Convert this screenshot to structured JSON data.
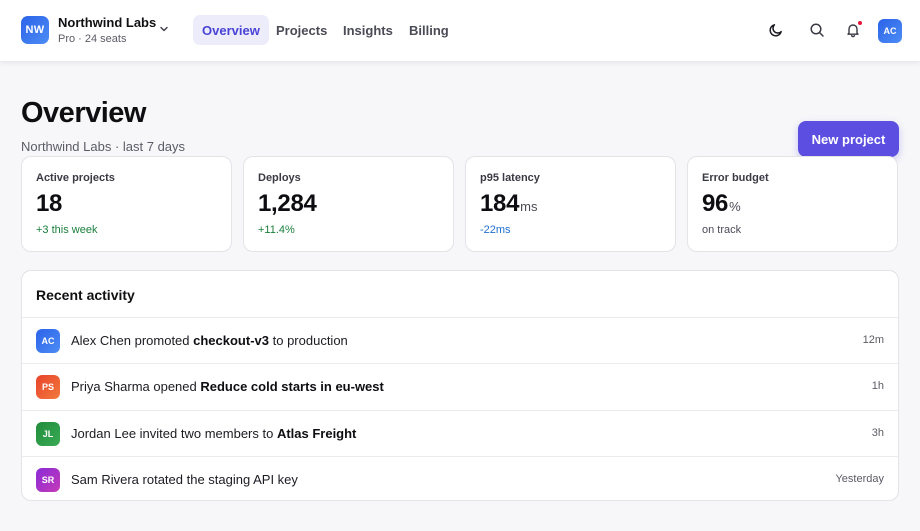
{
  "workspace": {
    "initials": "NW",
    "name": "Northwind Labs",
    "plan": "Pro · 24 seats",
    "accent": "#2b63e8"
  },
  "nav": {
    "tabs": [
      {
        "label": "Overview",
        "active": true
      },
      {
        "label": "Projects",
        "active": false
      },
      {
        "label": "Insights",
        "active": false
      },
      {
        "label": "Billing",
        "active": false
      }
    ]
  },
  "header_icons": {
    "theme": "moon-icon",
    "search": "search-icon",
    "notifications": "bell-icon",
    "notification_dot_color": "#e5173f"
  },
  "user": {
    "initials": "AC"
  },
  "page": {
    "title": "Overview",
    "subtitle": "Northwind Labs · last 7 days",
    "primary_action": "New project",
    "primary_color": "#5b4ee0"
  },
  "stats": [
    {
      "label": "Active projects",
      "value": "18",
      "unit": "",
      "delta": "+3 this week",
      "delta_color": "#1a7f3c"
    },
    {
      "label": "Deploys",
      "value": "1,284",
      "unit": "",
      "delta": "+11.4%",
      "delta_color": "#1a7f3c"
    },
    {
      "label": "p95 latency",
      "value": "184",
      "unit": "ms",
      "delta": "-22ms",
      "delta_color": "#1f6fd1"
    },
    {
      "label": "Error budget",
      "value": "96",
      "unit": "%",
      "delta": "on track",
      "delta_color": "#4b4b57"
    }
  ],
  "activity": {
    "title": "Recent activity",
    "items": [
      {
        "initials": "AC",
        "color_from": "#2b63e8",
        "color_to": "#4d8cf5",
        "before": "Alex Chen promoted ",
        "bold": "checkout-v3",
        "after": " to production",
        "time": "12m"
      },
      {
        "initials": "PS",
        "color_from": "#e8432b",
        "color_to": "#f27a3d",
        "before": "Priya Sharma opened ",
        "bold": "Reduce cold starts in eu-west",
        "after": "",
        "time": "1h"
      },
      {
        "initials": "JL",
        "color_from": "#1f8c3a",
        "color_to": "#3bab56",
        "before": "Jordan Lee invited two members to ",
        "bold": "Atlas Freight",
        "after": "",
        "time": "3h"
      },
      {
        "initials": "SR",
        "color_from": "#8a2bd6",
        "color_to": "#c53ab8",
        "before": "Sam Rivera rotated the staging API key",
        "bold": "",
        "after": "",
        "time": "Yesterday"
      }
    ]
  }
}
